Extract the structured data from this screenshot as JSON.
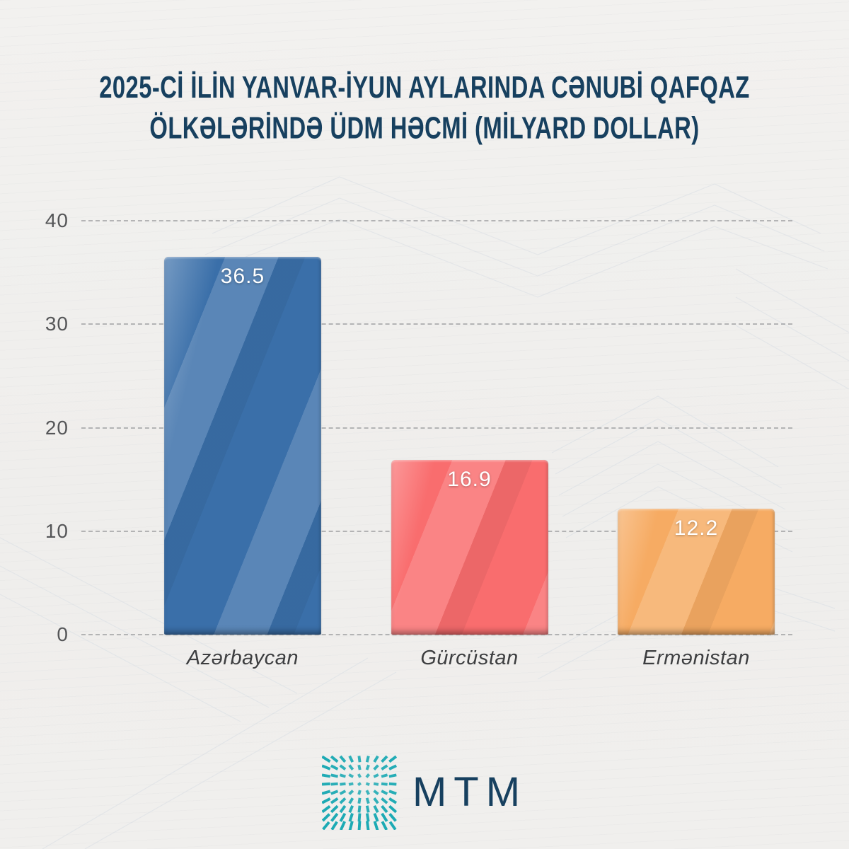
{
  "header": {
    "title_line1": "2025-Cİ İLİN YANVAR-İYUN AYLARINDA CƏNUBİ QAFQAZ",
    "title_line2": "ÖLKƏLƏRİNDƏ ÜDM HƏCMİ (MİLYARD DOLLAR)",
    "title_color": "#17405f"
  },
  "chart_data": {
    "type": "bar",
    "title": "2025-Cİ İLİN YANVAR-İYUN AYLARINDA CƏNUBİ QAFQAZ ÖLKƏLƏRİNDƏ ÜDM HƏCMİ (MİLYARD DOLLAR)",
    "categories": [
      "Azərbaycan",
      "Gürcüstan",
      "Ermənistan"
    ],
    "values": [
      36.5,
      16.9,
      12.2
    ],
    "value_labels": [
      "36.5",
      "16.9",
      "12.2"
    ],
    "bar_colors": [
      "#3a6fa9",
      "#f96d6e",
      "#f6ab63"
    ],
    "xlabel": "",
    "ylabel": "",
    "ylim": [
      0,
      40
    ],
    "yticks": [
      0,
      10,
      20,
      30,
      40
    ],
    "grid": "horizontal-dashed",
    "legend": "none",
    "value_label_color": "#ffffff",
    "tick_color": "#555658"
  },
  "footer": {
    "logo_text": "MTM",
    "logo_icon": "radial-dashes-burst-icon",
    "logo_text_color": "#17405f",
    "logo_icon_color": "#1caab4"
  }
}
